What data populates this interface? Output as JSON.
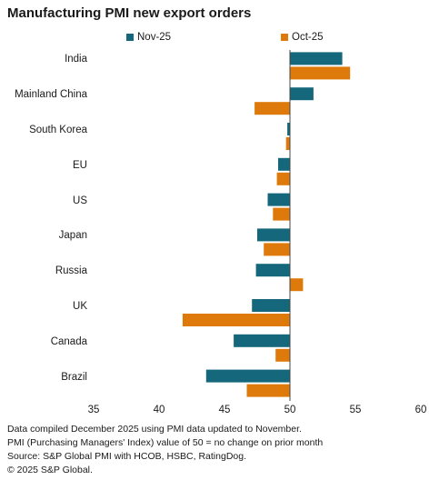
{
  "colors": {
    "nov": "#15687c",
    "oct": "#de7a0b",
    "axis": "#444444"
  },
  "chart_data": {
    "type": "bar",
    "orientation": "horizontal",
    "title": "Manufacturing PMI new export orders",
    "categories": [
      "India",
      "Mainland China",
      "South Korea",
      "EU",
      "US",
      "Japan",
      "Russia",
      "UK",
      "Canada",
      "Brazil"
    ],
    "series": [
      {
        "name": "Nov-25",
        "color": "#15687c",
        "values": [
          54.0,
          51.8,
          49.8,
          49.1,
          48.3,
          47.5,
          47.4,
          47.1,
          45.7,
          43.6
        ]
      },
      {
        "name": "Oct-25",
        "color": "#de7a0b",
        "values": [
          54.6,
          47.3,
          49.7,
          49.0,
          48.7,
          48.0,
          51.0,
          41.8,
          48.9,
          46.7
        ]
      }
    ],
    "baseline": 50,
    "xlim": [
      35,
      60
    ],
    "xticks": [
      "35",
      "40",
      "45",
      "50",
      "55",
      "60"
    ],
    "xlabel": "",
    "ylabel": "",
    "grid": false,
    "legend": "top"
  },
  "footnotes": [
    "Data compiled December 2025 using PMI data updated to November.",
    "PMI (Purchasing Managers' Index) value of 50 = no change on prior month",
    "Source: S&P Global PMI with HCOB, HSBC, RatingDog.",
    "© 2025 S&P Global."
  ]
}
